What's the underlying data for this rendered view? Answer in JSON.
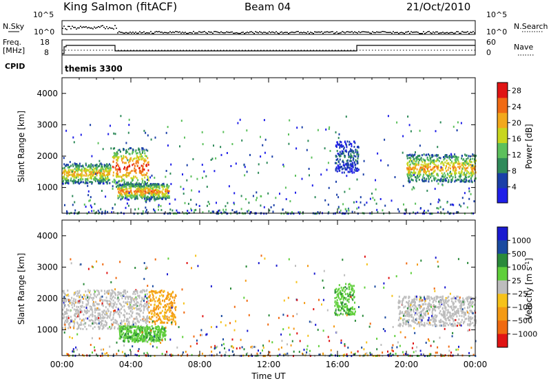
{
  "header": {
    "station": "King Salmon (fitACF)",
    "beam": "Beam 04",
    "date": "21/Oct/2010"
  },
  "top_panel": {
    "left_label": "N.Sky",
    "right_label": "N.Search",
    "left_ticks": [
      "10^5",
      "10^0"
    ],
    "right_ticks": [
      "10^5",
      "10^0"
    ]
  },
  "freq_panel": {
    "left_label_1": "Freq.",
    "left_label_2": "[MHz]",
    "right_label": "Nave",
    "left_ticks": [
      "18",
      "8"
    ],
    "right_ticks": [
      "60",
      "0"
    ]
  },
  "cpid_panel": {
    "label": "CPID",
    "mode_text": "themis 3300"
  },
  "colors": {
    "power": [
      "#1f1fe8",
      "#1a3fa8",
      "#2f8a5a",
      "#5cc05c",
      "#c8d61e",
      "#f2a81c",
      "#f06a14",
      "#e01414"
    ],
    "velocity": [
      "#1a1ad0",
      "#1a4aa0",
      "#2a8a3a",
      "#5fcf3a",
      "#bdbdbd",
      "#f6c21a",
      "#f49a14",
      "#f06a10",
      "#e01414"
    ]
  },
  "chart_data": [
    {
      "type": "heatmap",
      "title": "",
      "ylabel": "Slant Range [km]",
      "xlabel": "",
      "xlim": [
        "00:00",
        "24:00"
      ],
      "ylim": [
        180,
        4500
      ],
      "yticks": [
        "1000",
        "2000",
        "3000",
        "4000"
      ],
      "colorbar": {
        "label": "Power [dB]",
        "ticks": [
          "4",
          "8",
          "12",
          "16",
          "20",
          "24",
          "28"
        ],
        "range": [
          0,
          30
        ]
      },
      "features": [
        {
          "start_h": 0.0,
          "end_h": 2.8,
          "range_km_low": 1150,
          "range_km_high": 1800,
          "peak_power_db": 22
        },
        {
          "start_h": 2.9,
          "end_h": 5.0,
          "range_km_low": 1050,
          "range_km_high": 2300,
          "peak_power_db": 28
        },
        {
          "start_h": 3.2,
          "end_h": 6.2,
          "range_km_low": 650,
          "range_km_high": 1150,
          "peak_power_db": 24
        },
        {
          "start_h": 15.8,
          "end_h": 17.2,
          "range_km_low": 1500,
          "range_km_high": 2500,
          "peak_power_db": 8
        },
        {
          "start_h": 20.0,
          "end_h": 24.0,
          "range_km_low": 1200,
          "range_km_high": 2100,
          "peak_power_db": 22
        }
      ]
    },
    {
      "type": "heatmap",
      "title": "",
      "ylabel": "Slant Range [km]",
      "xlabel": "Time UT",
      "xlim": [
        "00:00",
        "24:00"
      ],
      "ylim": [
        180,
        4500
      ],
      "xticks": [
        "00:00",
        "04:00",
        "08:00",
        "12:00",
        "16:00",
        "20:00",
        "00:00"
      ],
      "yticks": [
        "1000",
        "2000",
        "3000",
        "4000"
      ],
      "colorbar": {
        "label_main": "Velocity [m s",
        "label_sup": "-1",
        "label_end": "]",
        "ticks": [
          "1000",
          "500",
          "100",
          "25",
          "−25",
          "−100",
          "−500",
          "−1000"
        ]
      },
      "features": [
        {
          "start_h": 0.0,
          "end_h": 5.0,
          "range_km_low": 1050,
          "range_km_high": 2300,
          "velocity_class": "ground scatter"
        },
        {
          "start_h": 3.3,
          "end_h": 6.0,
          "range_km_low": 650,
          "range_km_high": 1150,
          "velocity_ms": 150
        },
        {
          "start_h": 5.0,
          "end_h": 6.6,
          "range_km_low": 1200,
          "range_km_high": 2300,
          "velocity_ms": -150
        },
        {
          "start_h": 15.8,
          "end_h": 17.0,
          "range_km_low": 1500,
          "range_km_high": 2500,
          "velocity_ms": 100
        },
        {
          "start_h": 19.5,
          "end_h": 24.0,
          "range_km_low": 1150,
          "range_km_high": 2100,
          "velocity_class": "ground scatter"
        }
      ]
    }
  ]
}
